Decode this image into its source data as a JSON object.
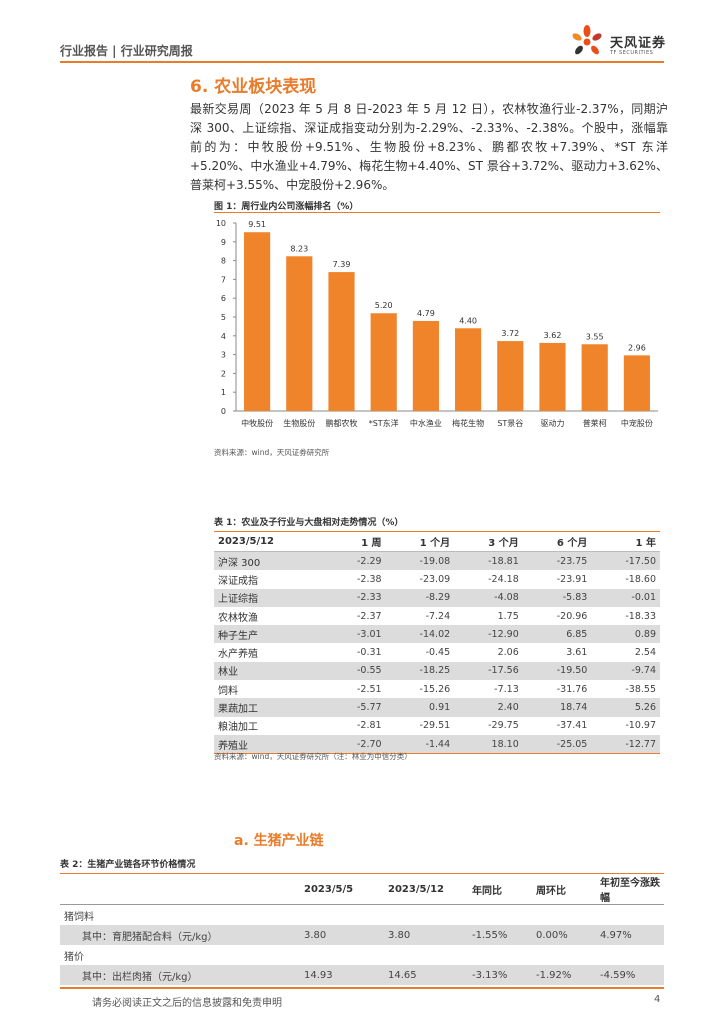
{
  "header": {
    "breadcrumb": "行业报告 | 行业研究周报",
    "logo_cn": "天风证券",
    "logo_en": "TF SECURITIES",
    "accent_color": "#e97c2b"
  },
  "section6": {
    "title": "6. 农业板块表现",
    "paragraph": "最新交易周（2023 年 5 月 8 日-2023 年 5 月 12 日），农林牧渔行业-2.37%，同期沪深 300、上证综指、深证成指变动分别为-2.29%、-2.33%、-2.38%。个股中，涨幅靠前的为：中牧股份+9.51%、生物股份+8.23%、鹏都农牧+7.39%、*ST 东洋+5.20%、中水渔业+4.79%、梅花生物+4.40%、ST 景谷+3.72%、驱动力+3.62%、普莱柯+3.55%、中宠股份+2.96%。"
  },
  "figure1": {
    "title": "图 1：周行业内公司涨幅排名（%）",
    "source": "资料来源：wind，天风证券研究所"
  },
  "chart_data": {
    "type": "bar",
    "title": "图 1：周行业内公司涨幅排名（%）",
    "categories": [
      "中牧股份",
      "生物股份",
      "鹏都农牧",
      "*ST东洋",
      "中水渔业",
      "梅花生物",
      "ST景谷",
      "驱动力",
      "普莱柯",
      "中宠股份"
    ],
    "values": [
      9.51,
      8.23,
      7.39,
      5.2,
      4.79,
      4.4,
      3.72,
      3.62,
      3.55,
      2.96
    ],
    "value_labels": [
      "9.51",
      "8.23",
      "7.39",
      "5.20",
      "4.79",
      "4.40",
      "3.72",
      "3.62",
      "3.55",
      "2.96"
    ],
    "ylim": [
      0,
      10
    ],
    "yticks": [
      "0",
      "1",
      "2",
      "3",
      "4",
      "5",
      "6",
      "7",
      "8",
      "9",
      "10"
    ],
    "bar_color": "#f0842a",
    "grid": false,
    "legend": "none"
  },
  "table1": {
    "title": "表 1：农业及子行业与大盘相对走势情况（%）",
    "headers": [
      "2023/5/12",
      "1 周",
      "1 个月",
      "3 个月",
      "6 个月",
      "1 年"
    ],
    "rows": [
      [
        "沪深 300",
        "-2.29",
        "-19.08",
        "-18.81",
        "-23.75",
        "-17.50"
      ],
      [
        "深证成指",
        "-2.38",
        "-23.09",
        "-24.18",
        "-23.91",
        "-18.60"
      ],
      [
        "上证综指",
        "-2.33",
        "-8.29",
        "-4.08",
        "-5.83",
        "-0.01"
      ],
      [
        "农林牧渔",
        "-2.37",
        "-7.24",
        "1.75",
        "-20.96",
        "-18.33"
      ],
      [
        "种子生产",
        "-3.01",
        "-14.02",
        "-12.90",
        "6.85",
        "0.89"
      ],
      [
        "水产养殖",
        "-0.31",
        "-0.45",
        "2.06",
        "3.61",
        "2.54"
      ],
      [
        "林业",
        "-0.55",
        "-18.25",
        "-17.56",
        "-19.50",
        "-9.74"
      ],
      [
        "饲料",
        "-2.51",
        "-15.26",
        "-7.13",
        "-31.76",
        "-38.55"
      ],
      [
        "果蔬加工",
        "-5.77",
        "0.91",
        "2.40",
        "18.74",
        "5.26"
      ],
      [
        "粮油加工",
        "-2.81",
        "-29.51",
        "-29.75",
        "-37.41",
        "-10.97"
      ],
      [
        "养殖业",
        "-2.70",
        "-1.44",
        "18.10",
        "-25.05",
        "-12.77"
      ]
    ],
    "source": "资料来源：wind，天风证券研究所（注：林业为中信分类）"
  },
  "section_a": {
    "title": "a.  生猪产业链"
  },
  "table2": {
    "title": "表 2：生猪产业链各环节价格情况",
    "headers": [
      "",
      "2023/5/5",
      "2023/5/12",
      "年同比",
      "周环比",
      "年初至今涨跌幅"
    ],
    "group1": "猪饲料",
    "row1": [
      "其中：育肥猪配合料（元/kg）",
      "3.80",
      "3.80",
      "-1.55%",
      "0.00%",
      "4.97%"
    ],
    "group2": "猪价",
    "row2": [
      "其中：出栏肉猪（元/kg）",
      "14.93",
      "14.65",
      "-3.13%",
      "-1.92%",
      "-4.59%"
    ]
  },
  "footer": {
    "disclaimer": "请务必阅读正文之后的信息披露和免责申明",
    "page": "4"
  }
}
